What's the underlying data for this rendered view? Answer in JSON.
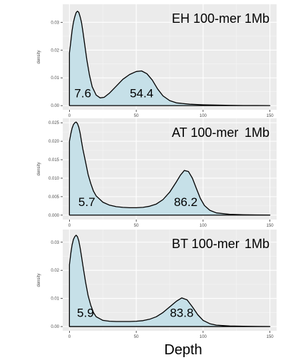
{
  "figure": {
    "xlabel": "Depth"
  },
  "chart_data": [
    {
      "type": "area",
      "title": "EH 100-mer",
      "resolution_label": "1Mb",
      "ylabel": "density",
      "xlim": [
        -5,
        155
      ],
      "ylim": [
        -0.0015,
        0.0365
      ],
      "xticks": [
        0,
        50,
        100,
        150
      ],
      "yticks": [
        0.0,
        0.01,
        0.02,
        0.03
      ],
      "ytick_labels": [
        "0.00",
        "0.01",
        "0.02",
        "0.03"
      ],
      "grid": true,
      "fill_color": "#c6e0e8",
      "peak_labels": [
        {
          "text": "7.6",
          "x": 10,
          "y": 0.003
        },
        {
          "text": "54.4",
          "x": 54,
          "y": 0.003
        }
      ],
      "x": [
        0,
        1,
        2,
        3,
        4,
        5,
        6,
        7,
        8,
        9,
        10,
        11,
        12,
        13,
        15,
        17,
        20,
        23,
        26,
        30,
        35,
        40,
        45,
        50,
        54,
        58,
        62,
        66,
        70,
        75,
        80,
        90,
        100,
        110,
        120,
        130,
        140,
        150
      ],
      "values": [
        0.019,
        0.023,
        0.027,
        0.03,
        0.032,
        0.0335,
        0.034,
        0.0336,
        0.032,
        0.03,
        0.027,
        0.0235,
        0.02,
        0.0165,
        0.011,
        0.0068,
        0.0038,
        0.0028,
        0.003,
        0.0045,
        0.007,
        0.0095,
        0.0112,
        0.0123,
        0.0125,
        0.0115,
        0.0092,
        0.006,
        0.0035,
        0.0018,
        0.001,
        0.0005,
        0.0003,
        0.0002,
        0.0001,
        5e-05,
        3e-05,
        2e-05
      ]
    },
    {
      "type": "area",
      "title": "AT 100-mer",
      "resolution_label": "1Mb",
      "ylabel": "density",
      "xlim": [
        -5,
        155
      ],
      "ylim": [
        -0.0012,
        0.0262
      ],
      "xticks": [
        0,
        50,
        100,
        150
      ],
      "yticks": [
        0.0,
        0.005,
        0.01,
        0.015,
        0.02,
        0.025
      ],
      "ytick_labels": [
        "0.000",
        "0.005",
        "0.010",
        "0.015",
        "0.020",
        "0.025"
      ],
      "grid": true,
      "fill_color": "#c6e0e8",
      "peak_labels": [
        {
          "text": "5.7",
          "x": 13,
          "y": 0.0025
        },
        {
          "text": "86.2",
          "x": 87,
          "y": 0.0025
        }
      ],
      "x": [
        0,
        1,
        2,
        3,
        4,
        5,
        6,
        7,
        8,
        9,
        10,
        12,
        14,
        16,
        18,
        20,
        25,
        30,
        35,
        40,
        45,
        50,
        55,
        60,
        65,
        70,
        75,
        80,
        83,
        86,
        89,
        92,
        95,
        98,
        101,
        105,
        110,
        120,
        130,
        140,
        150
      ],
      "values": [
        0.02,
        0.022,
        0.0235,
        0.0245,
        0.025,
        0.0252,
        0.0248,
        0.0238,
        0.0222,
        0.02,
        0.018,
        0.0145,
        0.011,
        0.0085,
        0.0065,
        0.0052,
        0.0035,
        0.0027,
        0.0023,
        0.0021,
        0.002,
        0.002,
        0.0021,
        0.0024,
        0.003,
        0.0042,
        0.0062,
        0.009,
        0.0108,
        0.0121,
        0.0118,
        0.01,
        0.0072,
        0.0045,
        0.0026,
        0.0013,
        0.0006,
        0.0002,
        0.0001,
        5e-05,
        3e-05
      ]
    },
    {
      "type": "area",
      "title": "BT 100-mer",
      "resolution_label": "1Mb",
      "ylabel": "density",
      "xlim": [
        -5,
        155
      ],
      "ylim": [
        -0.0015,
        0.0345
      ],
      "xticks": [
        0,
        50,
        100,
        150
      ],
      "yticks": [
        0.0,
        0.01,
        0.02,
        0.03
      ],
      "ytick_labels": [
        "0.00",
        "0.01",
        "0.02",
        "0.03"
      ],
      "grid": true,
      "fill_color": "#c6e0e8",
      "peak_labels": [
        {
          "text": "5.9",
          "x": 12,
          "y": 0.0035
        },
        {
          "text": "83.8",
          "x": 84,
          "y": 0.0035
        }
      ],
      "x": [
        0,
        1,
        2,
        3,
        4,
        5,
        6,
        7,
        8,
        9,
        10,
        12,
        14,
        16,
        18,
        20,
        25,
        30,
        35,
        40,
        45,
        50,
        55,
        60,
        65,
        70,
        75,
        80,
        84,
        88,
        92,
        96,
        100,
        105,
        110,
        120,
        130,
        140,
        150
      ],
      "values": [
        0.022,
        0.026,
        0.029,
        0.031,
        0.032,
        0.0325,
        0.032,
        0.0305,
        0.028,
        0.025,
        0.022,
        0.016,
        0.011,
        0.0075,
        0.005,
        0.0035,
        0.0022,
        0.0019,
        0.0018,
        0.0018,
        0.0018,
        0.0019,
        0.0021,
        0.0026,
        0.0035,
        0.005,
        0.007,
        0.009,
        0.0102,
        0.0095,
        0.007,
        0.0042,
        0.0022,
        0.001,
        0.0005,
        0.0002,
        0.0001,
        5e-05,
        3e-05
      ]
    }
  ]
}
